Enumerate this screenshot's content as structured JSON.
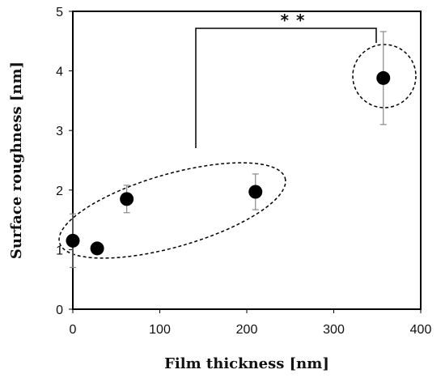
{
  "chart_data": {
    "type": "scatter",
    "title": "",
    "xlabel": "Film thickness [nm]",
    "ylabel": "Surface roughness [nm]",
    "xlim": [
      0,
      400
    ],
    "ylim": [
      0,
      5
    ],
    "x_ticks": [
      "0",
      "100",
      "200",
      "300",
      "400"
    ],
    "y_ticks": [
      "0",
      "1",
      "2",
      "3",
      "4",
      "5"
    ],
    "grid": false,
    "legend": "none",
    "points": [
      {
        "x": 0,
        "y": 1.15,
        "err": 0.45
      },
      {
        "x": 28,
        "y": 1.02,
        "err": 0.0
      },
      {
        "x": 62,
        "y": 1.85,
        "err": 0.23
      },
      {
        "x": 210,
        "y": 1.97,
        "err": 0.3
      },
      {
        "x": 357,
        "y": 3.88,
        "err": 0.78
      }
    ],
    "annotations": [
      {
        "text": "* *"
      }
    ],
    "colors": {
      "marker": "#000000",
      "error_bar": "#888888",
      "axis": "#000000"
    }
  }
}
